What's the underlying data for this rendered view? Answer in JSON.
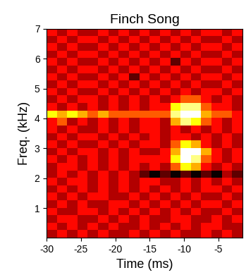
{
  "chart_data": {
    "type": "heatmap",
    "title": "Finch Song",
    "x_label": "Time (ms)",
    "y_label": "Freq. (kHz)",
    "xlim": [
      -30,
      -1.5
    ],
    "ylim": [
      0,
      7
    ],
    "xticks": [
      -30,
      -25,
      -20,
      -15,
      -10,
      -5
    ],
    "yticks": [
      1,
      2,
      3,
      4,
      5,
      6,
      7
    ],
    "color": "hot",
    "cells": [
      [
        3,
        4,
        3,
        4,
        3,
        4,
        3,
        3,
        4,
        3,
        4,
        3,
        4,
        3,
        3,
        4,
        3,
        4,
        3
      ],
      [
        4,
        3,
        4,
        3,
        4,
        3,
        4,
        3,
        3,
        4,
        3,
        4,
        3,
        4,
        3,
        4,
        4,
        3,
        3
      ],
      [
        3,
        4,
        4,
        3,
        3,
        4,
        3,
        4,
        3,
        4,
        3,
        3,
        4,
        4,
        3,
        3,
        4,
        3,
        4
      ],
      [
        4,
        3,
        3,
        4,
        4,
        3,
        4,
        3,
        4,
        3,
        4,
        3,
        4,
        3,
        4,
        3,
        3,
        4,
        3
      ],
      [
        3,
        4,
        3,
        4,
        3,
        3,
        4,
        4,
        3,
        4,
        3,
        4,
        3,
        4,
        3,
        4,
        4,
        3,
        4
      ],
      [
        4,
        3,
        4,
        3,
        4,
        4,
        3,
        3,
        4,
        3,
        4,
        3,
        4,
        3,
        4,
        3,
        3,
        4,
        3
      ],
      [
        3,
        4,
        3,
        4,
        3,
        4,
        3,
        4,
        3,
        4,
        3,
        4,
        3,
        4,
        3,
        4,
        4,
        3,
        4
      ],
      [
        4,
        3,
        4,
        4,
        3,
        4,
        3,
        4,
        3,
        4,
        4,
        3,
        3,
        4,
        3,
        4,
        3,
        4,
        3
      ],
      [
        3,
        4,
        3,
        4,
        3,
        4,
        3,
        4,
        3,
        2,
        1,
        2,
        1,
        2,
        1,
        2,
        1,
        3,
        2
      ],
      [
        3,
        4,
        4,
        3,
        4,
        3,
        4,
        3,
        4,
        3,
        4,
        3,
        5,
        7,
        6,
        4,
        3,
        4,
        3
      ],
      [
        4,
        3,
        4,
        3,
        4,
        3,
        4,
        3,
        4,
        4,
        4,
        4,
        7,
        9,
        8,
        5,
        4,
        3,
        4
      ],
      [
        3,
        4,
        3,
        4,
        4,
        3,
        4,
        3,
        4,
        3,
        3,
        4,
        6,
        9,
        9,
        6,
        4,
        3,
        4
      ],
      [
        4,
        3,
        4,
        3,
        3,
        4,
        3,
        4,
        3,
        4,
        4,
        3,
        5,
        7,
        6,
        4,
        3,
        4,
        3
      ],
      [
        3,
        4,
        3,
        4,
        4,
        3,
        4,
        3,
        4,
        3,
        4,
        3,
        4,
        4,
        3,
        4,
        3,
        4,
        3
      ],
      [
        4,
        3,
        4,
        3,
        3,
        4,
        3,
        4,
        3,
        4,
        4,
        3,
        4,
        3,
        4,
        3,
        4,
        3,
        4
      ],
      [
        4,
        5,
        3,
        4,
        3,
        4,
        3,
        4,
        3,
        4,
        4,
        3,
        6,
        8,
        7,
        5,
        4,
        3,
        4
      ],
      [
        7,
        6,
        7,
        6,
        5,
        6,
        5,
        5,
        5,
        5,
        5,
        5,
        8,
        9,
        9,
        6,
        5,
        5,
        4
      ],
      [
        4,
        3,
        4,
        3,
        4,
        3,
        4,
        3,
        4,
        3,
        4,
        4,
        7,
        8,
        8,
        5,
        4,
        4,
        3
      ],
      [
        3,
        4,
        3,
        4,
        4,
        3,
        4,
        3,
        4,
        3,
        4,
        3,
        4,
        5,
        5,
        4,
        3,
        4,
        3
      ],
      [
        4,
        3,
        4,
        3,
        3,
        4,
        3,
        4,
        3,
        4,
        3,
        4,
        3,
        4,
        3,
        4,
        4,
        3,
        4
      ],
      [
        3,
        4,
        3,
        4,
        4,
        3,
        4,
        3,
        4,
        3,
        4,
        3,
        4,
        3,
        4,
        3,
        3,
        4,
        3
      ],
      [
        4,
        3,
        4,
        3,
        3,
        4,
        3,
        4,
        2,
        4,
        3,
        4,
        3,
        4,
        3,
        4,
        4,
        3,
        4
      ],
      [
        3,
        4,
        3,
        4,
        4,
        3,
        4,
        3,
        4,
        3,
        4,
        3,
        4,
        3,
        4,
        3,
        3,
        4,
        3
      ],
      [
        4,
        3,
        4,
        3,
        3,
        4,
        3,
        4,
        3,
        4,
        3,
        4,
        2,
        4,
        3,
        4,
        4,
        3,
        4
      ],
      [
        3,
        4,
        3,
        4,
        4,
        3,
        4,
        3,
        4,
        3,
        4,
        3,
        4,
        3,
        4,
        3,
        3,
        4,
        3
      ],
      [
        4,
        3,
        4,
        3,
        3,
        4,
        3,
        4,
        3,
        4,
        3,
        4,
        3,
        4,
        3,
        4,
        4,
        3,
        4
      ],
      [
        3,
        4,
        3,
        4,
        4,
        3,
        4,
        3,
        4,
        3,
        4,
        3,
        4,
        3,
        4,
        3,
        3,
        4,
        3
      ],
      [
        4,
        3,
        4,
        3,
        3,
        4,
        3,
        4,
        3,
        4,
        3,
        4,
        3,
        4,
        3,
        4,
        4,
        3,
        4
      ]
    ]
  }
}
